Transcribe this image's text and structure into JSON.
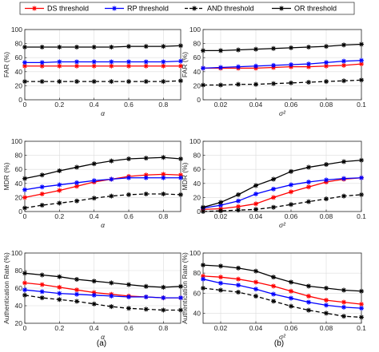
{
  "legend": {
    "items": [
      {
        "label": "DS threshold",
        "color": "#ff0000",
        "marker": "asterisk",
        "dash": "solid"
      },
      {
        "label": "RP threshold",
        "color": "#0000ff",
        "marker": "asterisk",
        "dash": "solid"
      },
      {
        "label": "AND threshold",
        "color": "#000000",
        "marker": "asterisk",
        "dash": "dashed"
      },
      {
        "label": "OR threshold",
        "color": "#000000",
        "marker": "asterisk",
        "dash": "solid"
      }
    ]
  },
  "subfigure_labels": [
    "(a)",
    "(b)"
  ],
  "chart_data": [
    {
      "type": "line",
      "column": 0,
      "row": 0,
      "xlabel": "α",
      "ylabel": "FAR (%)",
      "xlim": [
        0,
        0.9
      ],
      "ylim": [
        0,
        100
      ],
      "xticks": [
        0,
        0.2,
        0.4,
        0.6,
        0.8
      ],
      "xtick_labels": [
        "0",
        "0.2",
        "0.4",
        "0.6",
        "0.8"
      ],
      "yticks": [
        0,
        20,
        40,
        60,
        80,
        100
      ],
      "ytick_labels": [
        "0",
        "20",
        "40",
        "60",
        "80",
        "100"
      ],
      "grid": true,
      "x": [
        0,
        0.1,
        0.2,
        0.3,
        0.4,
        0.5,
        0.6,
        0.7,
        0.8,
        0.9
      ],
      "series": [
        {
          "name": "DS threshold",
          "values": [
            48,
            48,
            48,
            48,
            48,
            48,
            48,
            48,
            48,
            48
          ]
        },
        {
          "name": "RP threshold",
          "values": [
            53,
            53,
            54,
            54,
            54,
            54,
            54,
            54,
            54,
            55
          ]
        },
        {
          "name": "AND threshold",
          "values": [
            26,
            26,
            26,
            26,
            26,
            26,
            26,
            26,
            26,
            27
          ]
        },
        {
          "name": "OR threshold",
          "values": [
            75,
            75,
            75,
            75,
            75,
            75,
            76,
            76,
            76,
            77
          ]
        }
      ]
    },
    {
      "type": "line",
      "column": 1,
      "row": 0,
      "xlabel": "σ²",
      "ylabel": "FAR (%)",
      "xlim": [
        0.01,
        0.1
      ],
      "ylim": [
        0,
        100
      ],
      "xticks": [
        0.02,
        0.04,
        0.06,
        0.08,
        0.1
      ],
      "xtick_labels": [
        "0.02",
        "0.04",
        "0.06",
        "0.08",
        "0.1"
      ],
      "yticks": [
        0,
        20,
        40,
        60,
        80,
        100
      ],
      "ytick_labels": [
        "0",
        "20",
        "40",
        "60",
        "80",
        "100"
      ],
      "grid": true,
      "x": [
        0.01,
        0.02,
        0.03,
        0.04,
        0.05,
        0.06,
        0.07,
        0.08,
        0.09,
        0.1
      ],
      "series": [
        {
          "name": "DS threshold",
          "values": [
            45,
            45,
            45,
            45,
            46,
            47,
            47,
            48,
            49,
            51
          ]
        },
        {
          "name": "RP threshold",
          "values": [
            45,
            46,
            47,
            48,
            49,
            50,
            51,
            53,
            55,
            56
          ]
        },
        {
          "name": "AND threshold",
          "values": [
            21,
            21,
            22,
            22,
            23,
            24,
            25,
            26,
            27,
            28
          ]
        },
        {
          "name": "OR threshold",
          "values": [
            70,
            70,
            71,
            72,
            73,
            74,
            75,
            76,
            78,
            79
          ]
        }
      ]
    },
    {
      "type": "line",
      "column": 0,
      "row": 1,
      "xlabel": "α",
      "ylabel": "MDR (%)",
      "xlim": [
        0,
        0.9
      ],
      "ylim": [
        0,
        100
      ],
      "xticks": [
        0,
        0.2,
        0.4,
        0.6,
        0.8
      ],
      "xtick_labels": [
        "0",
        "0.2",
        "0.4",
        "0.6",
        "0.8"
      ],
      "yticks": [
        0,
        20,
        40,
        60,
        80,
        100
      ],
      "ytick_labels": [
        "0",
        "20",
        "40",
        "60",
        "80",
        "100"
      ],
      "grid": true,
      "x": [
        0,
        0.1,
        0.2,
        0.3,
        0.4,
        0.5,
        0.6,
        0.7,
        0.8,
        0.9
      ],
      "series": [
        {
          "name": "DS threshold",
          "values": [
            20,
            25,
            30,
            36,
            42,
            46,
            50,
            52,
            53,
            52
          ]
        },
        {
          "name": "RP threshold",
          "values": [
            31,
            35,
            38,
            41,
            44,
            46,
            48,
            48,
            48,
            48
          ]
        },
        {
          "name": "AND threshold",
          "values": [
            5,
            9,
            12,
            15,
            19,
            22,
            24,
            25,
            25,
            24
          ]
        },
        {
          "name": "OR threshold",
          "values": [
            47,
            52,
            58,
            63,
            68,
            72,
            75,
            76,
            77,
            75
          ]
        }
      ]
    },
    {
      "type": "line",
      "column": 1,
      "row": 1,
      "xlabel": "σ²",
      "ylabel": "MDR (%)",
      "xlim": [
        0.01,
        0.1
      ],
      "ylim": [
        0,
        100
      ],
      "xticks": [
        0.02,
        0.04,
        0.06,
        0.08,
        0.1
      ],
      "xtick_labels": [
        "0.02",
        "0.04",
        "0.06",
        "0.08",
        "0.1"
      ],
      "yticks": [
        0,
        20,
        40,
        60,
        80,
        100
      ],
      "ytick_labels": [
        "0",
        "20",
        "40",
        "60",
        "80",
        "100"
      ],
      "grid": true,
      "x": [
        0.01,
        0.02,
        0.03,
        0.04,
        0.05,
        0.06,
        0.07,
        0.08,
        0.09,
        0.1
      ],
      "series": [
        {
          "name": "DS threshold",
          "values": [
            3,
            4,
            7,
            11,
            20,
            28,
            35,
            42,
            46,
            48
          ]
        },
        {
          "name": "RP threshold",
          "values": [
            5,
            9,
            15,
            25,
            32,
            38,
            42,
            45,
            47,
            48
          ]
        },
        {
          "name": "AND threshold",
          "values": [
            0,
            1,
            2,
            3,
            6,
            10,
            14,
            18,
            22,
            24
          ]
        },
        {
          "name": "OR threshold",
          "values": [
            6,
            13,
            24,
            37,
            46,
            57,
            63,
            67,
            71,
            73
          ]
        }
      ]
    },
    {
      "type": "line",
      "column": 0,
      "row": 2,
      "xlabel": "α",
      "ylabel": "Authentication Rate (%)",
      "xlim": [
        0,
        0.9
      ],
      "ylim": [
        20,
        100
      ],
      "xticks": [
        0,
        0.2,
        0.4,
        0.6,
        0.8
      ],
      "xtick_labels": [
        "0",
        "0.2",
        "0.4",
        "0.6",
        "0.8"
      ],
      "yticks": [
        20,
        40,
        60,
        80,
        100
      ],
      "ytick_labels": [
        "20",
        "40",
        "60",
        "80",
        "100"
      ],
      "grid": true,
      "x": [
        0,
        0.1,
        0.2,
        0.3,
        0.4,
        0.5,
        0.6,
        0.7,
        0.8,
        0.9
      ],
      "series": [
        {
          "name": "DS threshold",
          "values": [
            66,
            64,
            61,
            58,
            55,
            53,
            51,
            50,
            49,
            49
          ]
        },
        {
          "name": "RP threshold",
          "values": [
            58,
            56,
            54,
            53,
            52,
            51,
            50,
            50,
            49,
            49
          ]
        },
        {
          "name": "AND threshold",
          "values": [
            52,
            49,
            47,
            45,
            42,
            39,
            37,
            36,
            35,
            35
          ]
        },
        {
          "name": "OR threshold",
          "values": [
            77,
            75,
            73,
            70,
            68,
            66,
            64,
            62,
            61,
            62
          ]
        }
      ]
    },
    {
      "type": "line",
      "column": 1,
      "row": 2,
      "xlabel": "σ²",
      "ylabel": "Authentication Rate (%)",
      "xlim": [
        0.01,
        0.1
      ],
      "ylim": [
        30,
        100
      ],
      "xticks": [
        0.02,
        0.04,
        0.06,
        0.08,
        0.1
      ],
      "xtick_labels": [
        "0.02",
        "0.04",
        "0.06",
        "0.08",
        "0.1"
      ],
      "yticks": [
        40,
        60,
        80,
        100
      ],
      "ytick_labels": [
        "40",
        "60",
        "80",
        "100"
      ],
      "grid": true,
      "x": [
        0.01,
        0.02,
        0.03,
        0.04,
        0.05,
        0.06,
        0.07,
        0.08,
        0.09,
        0.1
      ],
      "series": [
        {
          "name": "DS threshold",
          "values": [
            77,
            76,
            74,
            71,
            67,
            62,
            57,
            53,
            51,
            49
          ]
        },
        {
          "name": "RP threshold",
          "values": [
            74,
            70,
            68,
            64,
            59,
            55,
            51,
            48,
            46,
            45
          ]
        },
        {
          "name": "AND threshold",
          "values": [
            65,
            63,
            61,
            57,
            52,
            47,
            43,
            40,
            37,
            36
          ]
        },
        {
          "name": "OR threshold",
          "values": [
            88,
            87,
            85,
            82,
            76,
            71,
            67,
            65,
            63,
            62
          ]
        }
      ]
    }
  ]
}
